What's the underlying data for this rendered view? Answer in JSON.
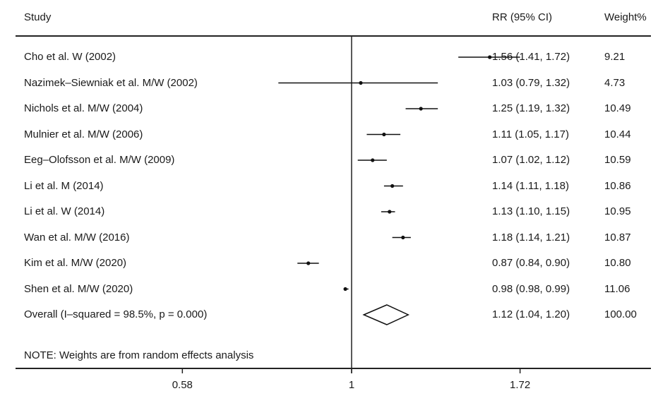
{
  "headers": {
    "study": "Study",
    "rr": "RR (95% CI)",
    "weight": "Weight%"
  },
  "note": "NOTE: Weights are from random effects analysis",
  "chart_data": {
    "type": "forest",
    "x_ticks": [
      {
        "value": 0.58,
        "label": "0.58"
      },
      {
        "value": 1,
        "label": "1"
      },
      {
        "value": 1.72,
        "label": "1.72"
      }
    ],
    "null_line": 1,
    "studies": [
      {
        "label": "Cho et al. W (2002)",
        "rr": 1.56,
        "lo": 1.41,
        "hi": 1.72,
        "ci_text": "1.56 (1.41, 1.72)",
        "weight": "9.21"
      },
      {
        "label": "Nazimek–Siewniak et al. M/W (2002)",
        "rr": 1.03,
        "lo": 0.79,
        "hi": 1.32,
        "ci_text": "1.03 (0.79, 1.32)",
        "weight": "4.73"
      },
      {
        "label": "Nichols et al. M/W (2004)",
        "rr": 1.25,
        "lo": 1.19,
        "hi": 1.32,
        "ci_text": "1.25 (1.19, 1.32)",
        "weight": "10.49"
      },
      {
        "label": "Mulnier et al. M/W (2006)",
        "rr": 1.11,
        "lo": 1.05,
        "hi": 1.17,
        "ci_text": "1.11 (1.05, 1.17)",
        "weight": "10.44"
      },
      {
        "label": "Eeg–Olofsson et al. M/W (2009)",
        "rr": 1.07,
        "lo": 1.02,
        "hi": 1.12,
        "ci_text": "1.07 (1.02, 1.12)",
        "weight": "10.59"
      },
      {
        "label": "Li et al. M (2014)",
        "rr": 1.14,
        "lo": 1.11,
        "hi": 1.18,
        "ci_text": "1.14 (1.11, 1.18)",
        "weight": "10.86"
      },
      {
        "label": "Li et al. W (2014)",
        "rr": 1.13,
        "lo": 1.1,
        "hi": 1.15,
        "ci_text": "1.13 (1.10, 1.15)",
        "weight": "10.95"
      },
      {
        "label": "Wan et al. M/W (2016)",
        "rr": 1.18,
        "lo": 1.14,
        "hi": 1.21,
        "ci_text": "1.18 (1.14, 1.21)",
        "weight": "10.87"
      },
      {
        "label": "Kim et al. M/W (2020)",
        "rr": 0.87,
        "lo": 0.84,
        "hi": 0.9,
        "ci_text": "0.87 (0.84, 0.90)",
        "weight": "10.80"
      },
      {
        "label": "Shen et al. M/W (2020)",
        "rr": 0.98,
        "lo": 0.98,
        "hi": 0.99,
        "ci_text": "0.98 (0.98, 0.99)",
        "weight": "11.06"
      }
    ],
    "overall": {
      "label": "Overall  (I–squared = 98.5%, p = 0.000)",
      "rr": 1.12,
      "lo": 1.04,
      "hi": 1.2,
      "ci_text": "1.12 (1.04, 1.20)",
      "weight": "100.00"
    }
  }
}
